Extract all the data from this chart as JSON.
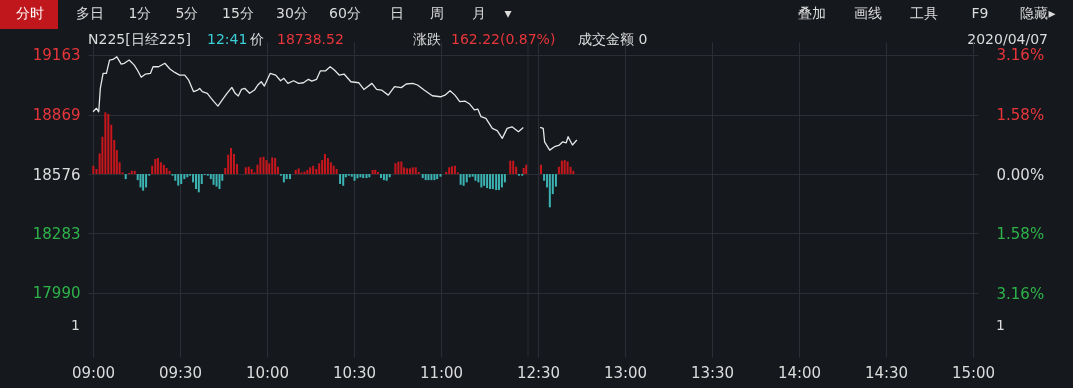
{
  "chart_data": [
    {
      "type": "line",
      "annotations": [
        "分时",
        "多日",
        "1分",
        "5分",
        "15分",
        "30分",
        "60分",
        "日",
        "周",
        "月",
        "▾",
        "叠加",
        "画线",
        "工具",
        "F9",
        "隐藏▸",
        "N225[日经225]",
        "12:41",
        "价",
        "18738.52",
        "涨跌",
        "162.22(0.87%)",
        "成交金额 0",
        "2020/04/07",
        "1",
        "1"
      ],
      "xlim": [
        9,
        11.5
      ],
      "xticks": [
        {
          "value": 9,
          "label": "09:00"
        },
        {
          "value": 9.5,
          "label": "09:30"
        },
        {
          "value": 10,
          "label": "10:00"
        },
        {
          "value": 10.5,
          "label": "10:30"
        },
        {
          "value": 11,
          "label": "11:00"
        }
      ],
      "ylim": [
        17674,
        19227
      ],
      "yticks": [
        17990,
        18283,
        18576,
        18869,
        19163
      ],
      "grid": true,
      "series": [
        {
          "color": "#e6e6e6",
          "x": [
            9,
            9.02,
            9.033,
            9.042,
            9.058,
            9.077,
            9.095,
            9.115,
            9.137,
            9.162,
            9.18,
            9.208,
            9.237,
            9.255,
            9.277,
            9.302,
            9.33,
            9.345,
            9.377,
            9.413,
            9.442,
            9.47,
            9.498,
            9.527,
            9.55,
            9.578,
            9.602,
            9.613,
            9.628,
            9.657,
            9.675,
            9.695,
            9.718,
            9.742,
            9.77,
            9.798,
            9.817,
            9.835,
            9.853,
            9.873,
            9.9,
            9.928,
            9.947,
            9.967,
            9.985,
            10.018,
            10.05,
            10.078,
            10.097,
            10.12,
            10.153,
            10.182,
            10.21,
            10.238,
            10.257,
            10.285,
            10.307,
            10.337,
            10.363,
            10.387,
            10.415,
            10.443,
            10.482,
            10.528,
            10.557,
            10.603,
            10.63,
            10.658,
            10.697,
            10.733,
            10.772,
            10.8,
            10.837,
            10.865,
            10.903,
            10.95,
            10.997,
            11.023,
            11.052,
            11.08,
            11.108,
            11.137,
            11.165,
            11.192,
            11.212,
            11.23,
            11.258,
            11.295,
            11.323,
            11.352,
            11.38,
            11.408,
            11.445,
            11.473
          ],
          "values": [
            18883,
            18900,
            18883,
            18998,
            19072,
            19072,
            19138,
            19141,
            19154,
            19118,
            19122,
            19138,
            19113,
            19089,
            19053,
            19069,
            19072,
            19105,
            19105,
            19122,
            19094,
            19077,
            19064,
            19064,
            19039,
            18982,
            18990,
            18998,
            18982,
            18974,
            18954,
            18933,
            18911,
            18941,
            18974,
            19003,
            18974,
            18961,
            18993,
            18998,
            18974,
            18990,
            19015,
            19031,
            19010,
            19072,
            19064,
            19036,
            19048,
            19023,
            19036,
            19023,
            19026,
            19043,
            19034,
            19043,
            19085,
            19085,
            19105,
            19089,
            19064,
            19069,
            19031,
            19026,
            18993,
            19023,
            18993,
            18990,
            18965,
            19007,
            19002,
            19020,
            19023,
            19015,
            18990,
            18962,
            18957,
            18965,
            18987,
            18965,
            18933,
            18936,
            18921,
            18892,
            18896,
            18859,
            18850,
            18801,
            18790,
            18752,
            18801,
            18809,
            18785,
            18806
          ]
        },
        {
          "type": "bar",
          "color": "#c8161d",
          "x": [
            9.002,
            9.02,
            9.038,
            9.054,
            9.071,
            9.088,
            9.105,
            9.122,
            9.137,
            9.153,
            9.17,
            9.207,
            9.223,
            9.24,
            9.34,
            9.358,
            9.373,
            9.39,
            9.407,
            9.423,
            9.44,
            9.76,
            9.777,
            9.793,
            9.81,
            9.828,
            9.878,
            9.895,
            9.912,
            9.928,
            9.945,
            9.962,
            9.98,
            9.997,
            10.013,
            10.03,
            10.047,
            10.063,
            10.165,
            10.182,
            10.198,
            10.215,
            10.232,
            10.248,
            10.265,
            10.283,
            10.3,
            10.317,
            10.333,
            10.35,
            10.367,
            10.383,
            10.4,
            10.607,
            10.622,
            10.638,
            10.738,
            10.755,
            10.772,
            10.788,
            10.805,
            10.822,
            10.838,
            10.855,
            10.872,
            11.03,
            11.047,
            11.063,
            11.08,
            11.097,
            11.398,
            11.415,
            11.432,
            11.475,
            11.49
          ],
          "values": [
            41,
            25,
            102,
            184,
            304,
            296,
            243,
            168,
            118,
            58,
            8,
            5,
            16,
            16,
            41,
            74,
            79,
            58,
            46,
            30,
            16,
            30,
            95,
            128,
            99,
            49,
            33,
            36,
            25,
            8,
            46,
            82,
            85,
            69,
            53,
            82,
            79,
            36,
            20,
            28,
            8,
            12,
            20,
            33,
            41,
            25,
            53,
            69,
            99,
            79,
            58,
            41,
            25,
            20,
            21,
            10,
            53,
            61,
            62,
            33,
            28,
            28,
            33,
            33,
            10,
            11,
            33,
            38,
            41,
            8,
            66,
            66,
            36,
            30,
            46
          ],
          "base": [
            18576,
            18576,
            18576,
            18576,
            18576,
            18576,
            18576,
            18576,
            18576,
            18576,
            18576,
            18576,
            18576,
            18576,
            18576,
            18576,
            18576,
            18576,
            18576,
            18576,
            18576,
            18576,
            18576,
            18576,
            18576,
            18576,
            18576,
            18576,
            18576,
            18576,
            18576,
            18576,
            18576,
            18576,
            18576,
            18576,
            18576,
            18576,
            18576,
            18576,
            18576,
            18576,
            18576,
            18576,
            18576,
            18576,
            18576,
            18576,
            18576,
            18576,
            18576,
            18576,
            18576,
            18576,
            18576,
            18576,
            18576,
            18576,
            18576,
            18576,
            18576,
            18576,
            18576,
            18576,
            18576,
            18576,
            18576,
            18576,
            18576,
            18576,
            18576,
            18576,
            18576,
            18576,
            18576
          ]
        },
        {
          "type": "bar",
          "color": "#3cb4b4",
          "x": [
            9.188,
            9.257,
            9.273,
            9.288,
            9.305,
            9.323,
            9.457,
            9.473,
            9.49,
            9.507,
            9.525,
            9.542,
            9.558,
            9.575,
            9.592,
            9.608,
            9.625,
            9.642,
            9.66,
            9.677,
            9.693,
            9.71,
            9.727,
            9.743,
            10.08,
            10.097,
            10.113,
            10.132,
            10.42,
            10.438,
            10.453,
            10.47,
            10.487,
            10.503,
            10.52,
            10.537,
            10.553,
            10.572,
            10.588,
            10.655,
            10.672,
            10.688,
            10.705,
            10.895,
            10.912,
            10.928,
            10.945,
            10.962,
            10.978,
            10.997,
            11.113,
            11.13,
            11.148,
            11.165,
            11.182,
            11.198,
            11.215,
            11.232,
            11.248,
            11.265,
            11.282,
            11.298,
            11.317,
            11.333,
            11.35,
            11.367,
            11.448,
            11.467
          ],
          "values": [
            -25,
            -30,
            -66,
            -82,
            -66,
            -8,
            -8,
            -33,
            -57,
            -49,
            -25,
            -16,
            -8,
            -41,
            -74,
            -90,
            -49,
            -5,
            -8,
            -25,
            -53,
            -62,
            -74,
            -33,
            -8,
            -41,
            -25,
            -25,
            -49,
            -58,
            -16,
            -8,
            -13,
            -33,
            -21,
            -16,
            -20,
            -20,
            -16,
            -20,
            -30,
            -33,
            -16,
            -20,
            -30,
            -30,
            -30,
            -30,
            -25,
            -13,
            -53,
            -58,
            -41,
            -16,
            -13,
            -33,
            -41,
            -66,
            -58,
            -69,
            -74,
            -74,
            -79,
            -79,
            -66,
            -41,
            -8,
            -8
          ],
          "base": [
            18576,
            18576,
            18576,
            18576,
            18576,
            18576,
            18576,
            18576,
            18576,
            18576,
            18576,
            18576,
            18576,
            18576,
            18576,
            18576,
            18576,
            18576,
            18576,
            18576,
            18576,
            18576,
            18576,
            18576,
            18576,
            18576,
            18576,
            18576,
            18576,
            18576,
            18576,
            18576,
            18576,
            18576,
            18576,
            18576,
            18576,
            18576,
            18576,
            18576,
            18576,
            18576,
            18576,
            18576,
            18576,
            18576,
            18576,
            18576,
            18576,
            18576,
            18576,
            18576,
            18576,
            18576,
            18576,
            18576,
            18576,
            18576,
            18576,
            18576,
            18576,
            18576,
            18576,
            18576,
            18576,
            18576,
            18576,
            18576
          ]
        }
      ]
    },
    {
      "type": "line",
      "xlim": [
        12.5,
        15
      ],
      "xticks": [
        {
          "value": 12.5,
          "label": "12:30"
        },
        {
          "value": 13,
          "label": "13:00"
        },
        {
          "value": 13.5,
          "label": "13:30"
        },
        {
          "value": 14,
          "label": "14:00"
        },
        {
          "value": 14.5,
          "label": "14:30"
        },
        {
          "value": 15,
          "label": "15:00"
        }
      ],
      "ylim": [
        17674,
        19227
      ],
      "yticks": [
        17990,
        18283,
        18576,
        18869,
        19163
      ],
      "tick_labels": "x",
      "y2lim": [
        -4.856,
        3.505
      ],
      "y2ticks": [
        {
          "value": -3.16,
          "label": "3.16%"
        },
        {
          "value": -1.58,
          "label": "1.58%"
        },
        {
          "value": 0,
          "label": "0.00%"
        },
        {
          "value": 1.58,
          "label": "1.58%"
        },
        {
          "value": 3.16,
          "label": "3.16%"
        }
      ],
      "grid": true,
      "series": [
        {
          "color": "#e6e6e6",
          "x": [
            12.512,
            12.53,
            12.538,
            12.567,
            12.595,
            12.623,
            12.642,
            12.662,
            12.673,
            12.698,
            12.723
          ],
          "values": [
            18806,
            18801,
            18735,
            18694,
            18711,
            18719,
            18735,
            18730,
            18760,
            18719,
            18744
          ]
        },
        {
          "type": "bar",
          "color": "#c8161d",
          "x": [
            12.517,
            12.62,
            12.637,
            12.653,
            12.67,
            12.687,
            12.703
          ],
          "values": [
            46,
            36,
            66,
            69,
            62,
            36,
            16
          ],
          "base": [
            18576,
            18576,
            18576,
            18576,
            18576,
            18576,
            18576
          ]
        },
        {
          "type": "bar",
          "color": "#3cb4b4",
          "x": [
            12.535,
            12.552,
            12.568,
            12.585,
            12.603
          ],
          "values": [
            -33,
            -66,
            -164,
            -99,
            -62
          ],
          "base": [
            18576,
            18576,
            18576,
            18576,
            18576
          ]
        }
      ]
    }
  ]
}
